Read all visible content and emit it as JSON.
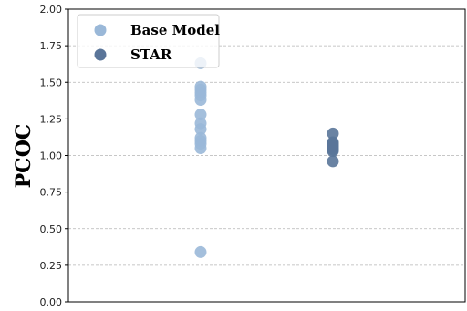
{
  "chart_data": {
    "type": "scatter",
    "title": "",
    "xlabel": "",
    "ylabel": "PCOC",
    "ylim": [
      0,
      2
    ],
    "yticks": [
      "0.00",
      "0.25",
      "0.50",
      "0.75",
      "1.00",
      "1.25",
      "1.50",
      "1.75",
      "2.00"
    ],
    "grid": "horizontal dashed",
    "legend_position": "top-left",
    "series": [
      {
        "name": "Base Model",
        "color": "#9ab8d8",
        "x": 1,
        "values": [
          1.63,
          1.47,
          1.45,
          1.43,
          1.41,
          1.38,
          1.28,
          1.22,
          1.18,
          1.12,
          1.1,
          1.08,
          1.05,
          0.34
        ]
      },
      {
        "name": "STAR",
        "color": "#5a7599",
        "x": 2,
        "values": [
          1.15,
          1.09,
          1.08,
          1.07,
          1.06,
          1.05,
          1.04,
          1.03,
          0.96
        ]
      }
    ]
  }
}
